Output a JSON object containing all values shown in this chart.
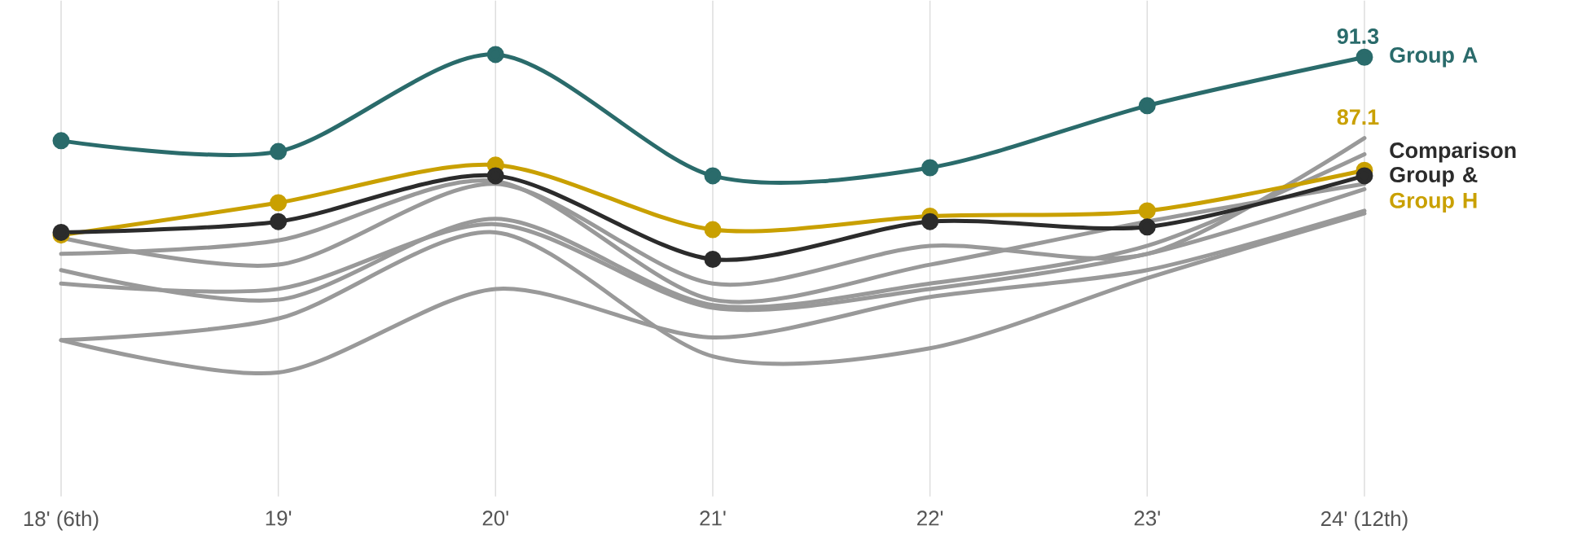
{
  "chart_data": {
    "type": "line",
    "categories": [
      "18' (6th)",
      "19'",
      "20'",
      "21'",
      "22'",
      "23'",
      "24' (12th)"
    ],
    "ylim": [
      75,
      93.4
    ],
    "grid": "x",
    "legend": false,
    "tick_labels": "x",
    "series": [
      {
        "color": "#999999",
        "marker": "none",
        "values": [
          84.6,
          83.6,
          86.6,
          82.9,
          84.3,
          84.0,
          88.3
        ]
      },
      {
        "color": "#999999",
        "marker": "none",
        "values": [
          84.0,
          84.5,
          86.7,
          82.3,
          83.6,
          85.2,
          86.6
        ]
      },
      {
        "color": "#999999",
        "marker": "none",
        "values": [
          83.4,
          82.3,
          85.3,
          82.1,
          82.9,
          84.3,
          87.7
        ]
      },
      {
        "color": "#999999",
        "marker": "none",
        "values": [
          82.9,
          82.7,
          85.1,
          82.0,
          82.7,
          84.0,
          86.4
        ]
      },
      {
        "color": "#999999",
        "marker": "none",
        "values": [
          80.8,
          81.6,
          84.8,
          80.2,
          80.5,
          83.1,
          85.5
        ]
      },
      {
        "color": "#999999",
        "marker": "none",
        "values": [
          80.8,
          79.6,
          82.7,
          80.9,
          82.4,
          83.4,
          85.6
        ]
      },
      {
        "name": "Group H",
        "color": "#c9a000",
        "marker": "circle",
        "values": [
          84.7,
          85.9,
          87.3,
          84.9,
          85.4,
          85.6,
          87.1
        ],
        "value_labels": [
          null,
          null,
          null,
          null,
          null,
          null,
          "87.1"
        ]
      },
      {
        "name": "Comparison Group &",
        "color": "#2b2b2b",
        "marker": "circle",
        "values": [
          84.8,
          85.2,
          86.9,
          83.8,
          85.2,
          85.0,
          86.9
        ]
      },
      {
        "name": "Group A",
        "color": "#2a6b6b",
        "marker": "circle",
        "values": [
          88.2,
          87.8,
          91.4,
          86.9,
          87.2,
          89.5,
          91.3
        ],
        "value_labels": [
          null,
          null,
          null,
          null,
          null,
          null,
          "91.3"
        ]
      }
    ]
  }
}
